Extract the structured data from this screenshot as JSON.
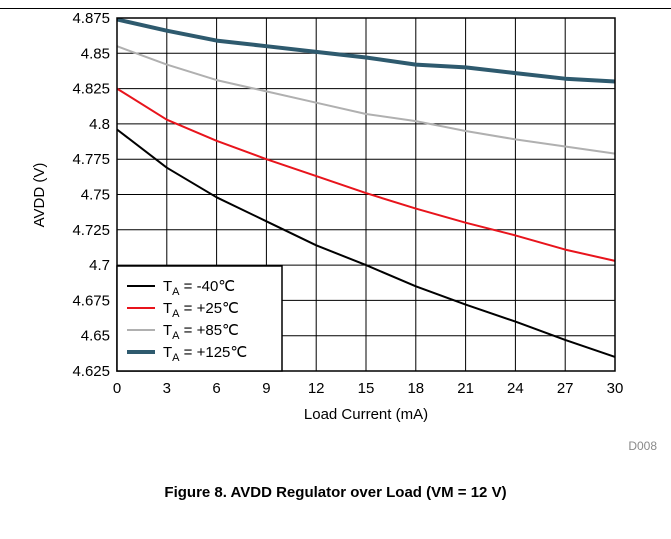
{
  "caption": "Figure 8. AVDD Regulator over Load (VM = 12 V)",
  "figure_id": "D008",
  "chart_data": {
    "type": "line",
    "title": "",
    "xlabel": "Load Current  (mA)",
    "ylabel": "AVDD (V)",
    "xlim": [
      0,
      30
    ],
    "ylim": [
      4.625,
      4.875
    ],
    "grid": true,
    "legend_position": "bottom-left",
    "x_ticks": [
      "0",
      "3",
      "6",
      "9",
      "12",
      "15",
      "18",
      "21",
      "24",
      "27",
      "30"
    ],
    "y_ticks": [
      "4.875",
      "4.85",
      "4.825",
      "4.8",
      "4.775",
      "4.75",
      "4.725",
      "4.7",
      "4.675",
      "4.65",
      "4.625"
    ],
    "x": [
      0,
      3,
      6,
      9,
      12,
      15,
      18,
      21,
      24,
      27,
      30
    ],
    "series": [
      {
        "name_prefix": "T",
        "name_sub": "A",
        "name_suffix": " = -40℃",
        "color": "#000000",
        "width": 2,
        "values": [
          4.796,
          4.769,
          4.748,
          4.731,
          4.714,
          4.7,
          4.685,
          4.672,
          4.66,
          4.647,
          4.635
        ]
      },
      {
        "name_prefix": "T",
        "name_sub": "A",
        "name_suffix": " = +25℃",
        "color": "#e8141c",
        "width": 2,
        "values": [
          4.825,
          4.803,
          4.788,
          4.775,
          4.763,
          4.751,
          4.74,
          4.73,
          4.721,
          4.711,
          4.703
        ]
      },
      {
        "name_prefix": "T",
        "name_sub": "A",
        "name_suffix": " = +85℃",
        "color": "#b0b0b0",
        "width": 2,
        "values": [
          4.855,
          4.842,
          4.831,
          4.823,
          4.815,
          4.807,
          4.802,
          4.795,
          4.789,
          4.784,
          4.779
        ]
      },
      {
        "name_prefix": "T",
        "name_sub": "A",
        "name_suffix": " = +125℃",
        "color": "#2e5a6e",
        "width": 4,
        "values": [
          4.874,
          4.866,
          4.859,
          4.855,
          4.851,
          4.847,
          4.842,
          4.84,
          4.836,
          4.832,
          4.83
        ]
      }
    ]
  }
}
